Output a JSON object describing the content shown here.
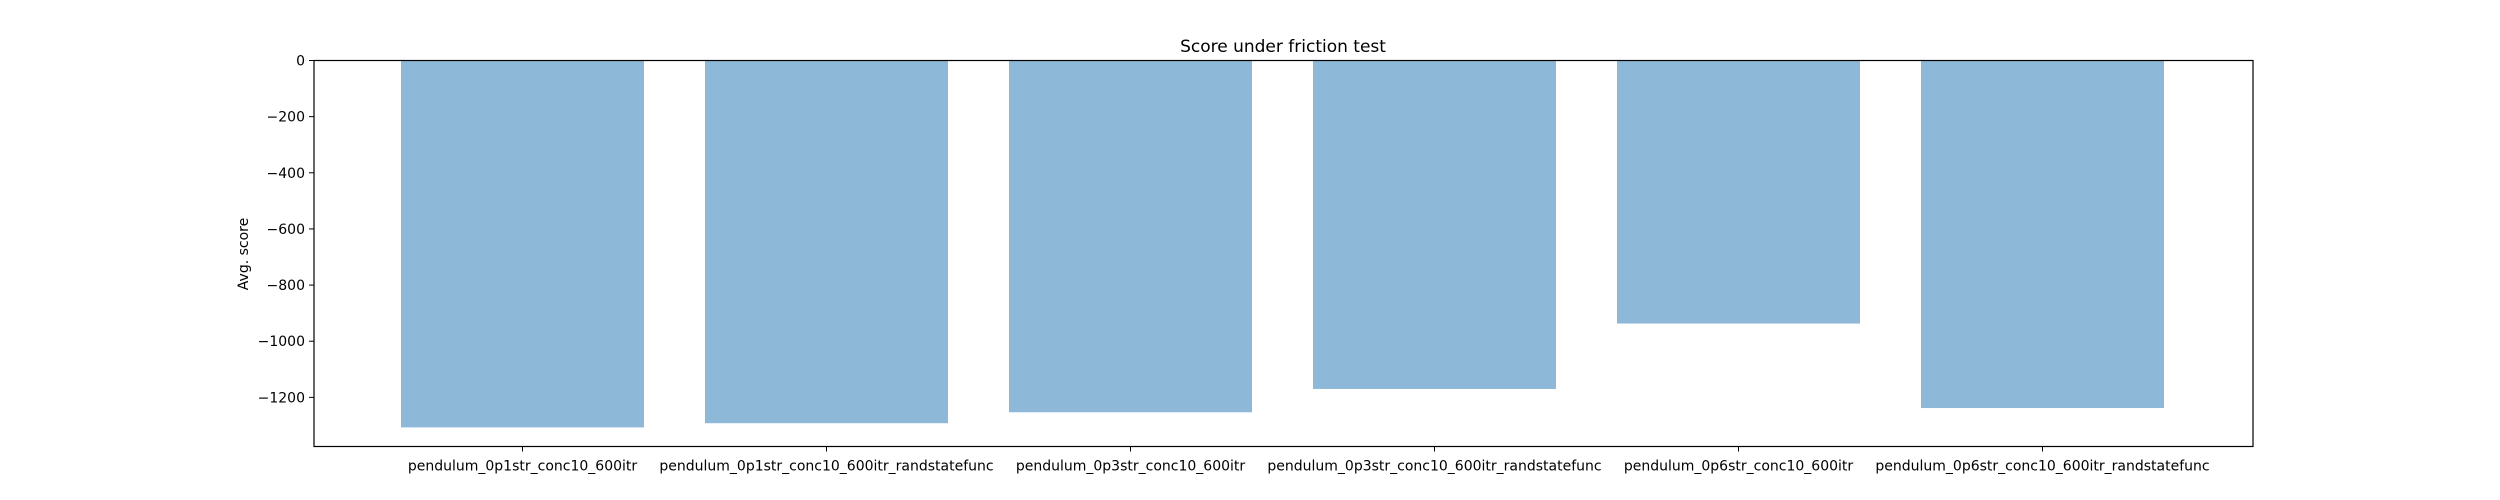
{
  "chart_data": {
    "type": "bar",
    "title": "Score under friction test",
    "xlabel": "",
    "ylabel": "Avg. score",
    "categories": [
      "pendulum_0p1str_conc10_600itr",
      "pendulum_0p1str_conc10_600itr_randstatefunc",
      "pendulum_0p3str_conc10_600itr",
      "pendulum_0p3str_conc10_600itr_randstatefunc",
      "pendulum_0p6str_conc10_600itr",
      "pendulum_0p6str_conc10_600itr_randstatefunc"
    ],
    "values": [
      -1307,
      -1292,
      -1253,
      -1170,
      -937,
      -1238
    ],
    "ylim": [
      -1375,
      0
    ],
    "yticks": [
      0,
      -200,
      -400,
      -600,
      -800,
      -1000,
      -1200
    ],
    "ytick_labels": [
      "0",
      "−200",
      "−400",
      "−600",
      "−800",
      "−1000",
      "−1200"
    ],
    "bar_color": "#8db8d8",
    "grid": false,
    "legend": "none"
  }
}
